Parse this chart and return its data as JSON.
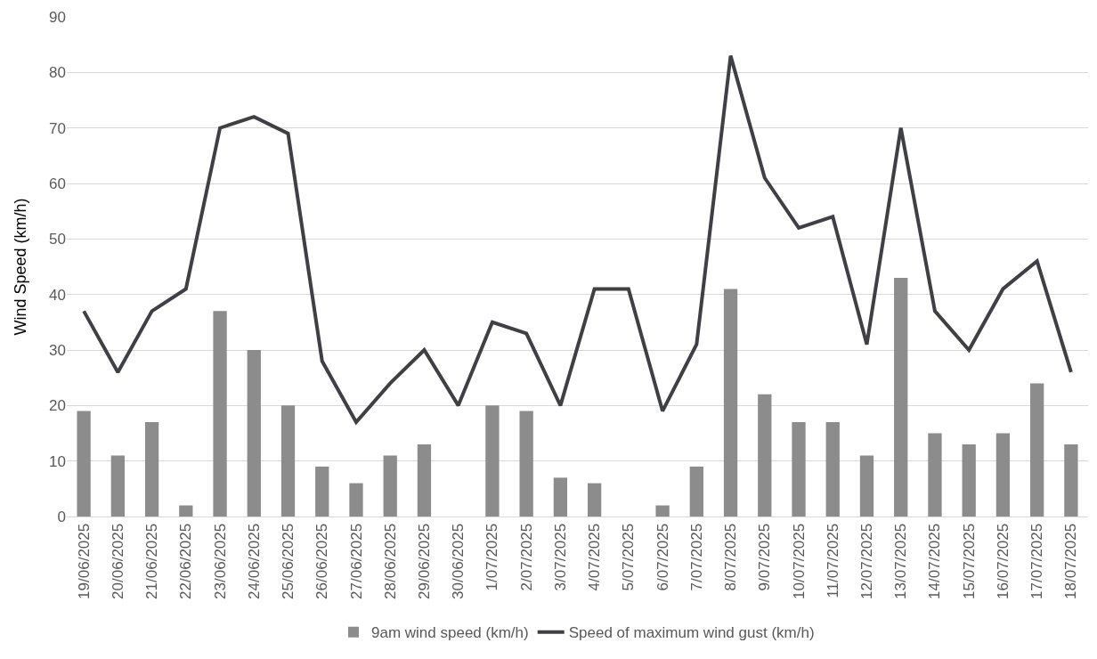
{
  "chart_data": {
    "type": "bar",
    "ylabel": "Wind Speed (km/h)",
    "categories": [
      "19/06/2025",
      "20/06/2025",
      "21/06/2025",
      "22/06/2025",
      "23/06/2025",
      "24/06/2025",
      "25/06/2025",
      "26/06/2025",
      "27/06/2025",
      "28/06/2025",
      "29/06/2025",
      "30/06/2025",
      "1/07/2025",
      "2/07/2025",
      "3/07/2025",
      "4/07/2025",
      "5/07/2025",
      "6/07/2025",
      "7/07/2025",
      "8/07/2025",
      "9/07/2025",
      "10/07/2025",
      "11/07/2025",
      "12/07/2025",
      "13/07/2025",
      "14/07/2025",
      "15/07/2025",
      "16/07/2025",
      "17/07/2025",
      "18/07/2025"
    ],
    "series": [
      {
        "name": "9am wind speed (km/h)",
        "color": "#8c8c8c",
        "values": [
          19,
          11,
          17,
          2,
          37,
          30,
          20,
          9,
          6,
          11,
          13,
          0,
          20,
          19,
          7,
          6,
          0,
          2,
          9,
          41,
          22,
          17,
          17,
          11,
          43,
          15,
          13,
          15,
          24,
          13
        ]
      },
      {
        "name": "Speed of maximum wind gust (km/h)",
        "type": "line",
        "color": "#3f3f46",
        "values": [
          37,
          26,
          37,
          41,
          70,
          72,
          69,
          28,
          17,
          24,
          30,
          20,
          35,
          33,
          20,
          41,
          41,
          19,
          31,
          83,
          61,
          52,
          54,
          31,
          70,
          37,
          30,
          41,
          46,
          26
        ]
      }
    ],
    "ylim": [
      0,
      90
    ],
    "yticks": [
      0,
      10,
      20,
      30,
      40,
      50,
      60,
      70,
      80,
      90
    ],
    "grid": "y",
    "legend": "bottom",
    "marker": "none"
  }
}
